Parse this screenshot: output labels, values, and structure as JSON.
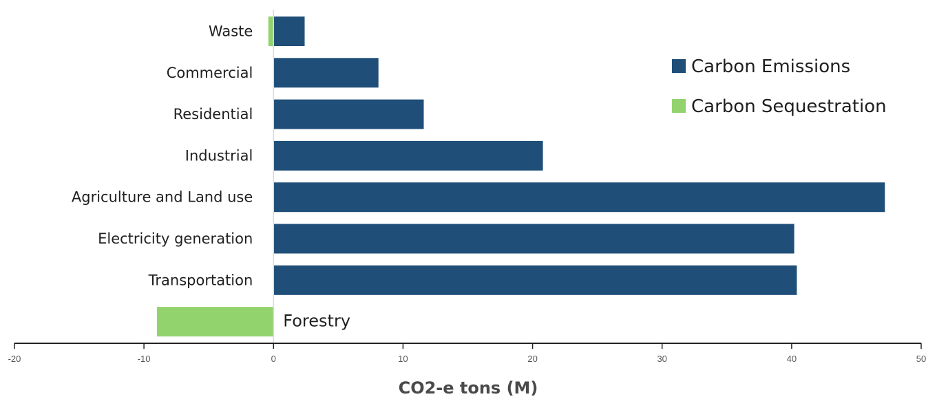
{
  "chart_data": {
    "type": "bar",
    "orientation": "horizontal",
    "categories": [
      "Waste",
      "Commercial",
      "Residential",
      "Industrial",
      "Agriculture and Land use",
      "Electricity generation",
      "Transportation",
      "Forestry"
    ],
    "series": [
      {
        "name": "Carbon Emissions",
        "color": "#1f4e79",
        "values": [
          2.4,
          8.1,
          11.6,
          20.8,
          47.2,
          40.2,
          40.4,
          null
        ]
      },
      {
        "name": "Carbon Sequestration",
        "color": "#92d36e",
        "values": [
          -0.4,
          null,
          null,
          null,
          null,
          null,
          null,
          -9.0
        ]
      }
    ],
    "inline_labels": [
      "Forestry"
    ],
    "xlabel": "CO2-e tons (M)",
    "xlim": [
      -20,
      50
    ],
    "xticks": [
      -20,
      -10,
      0,
      10,
      20,
      30,
      40,
      50
    ],
    "grid": false,
    "legend_position": "top-right"
  }
}
